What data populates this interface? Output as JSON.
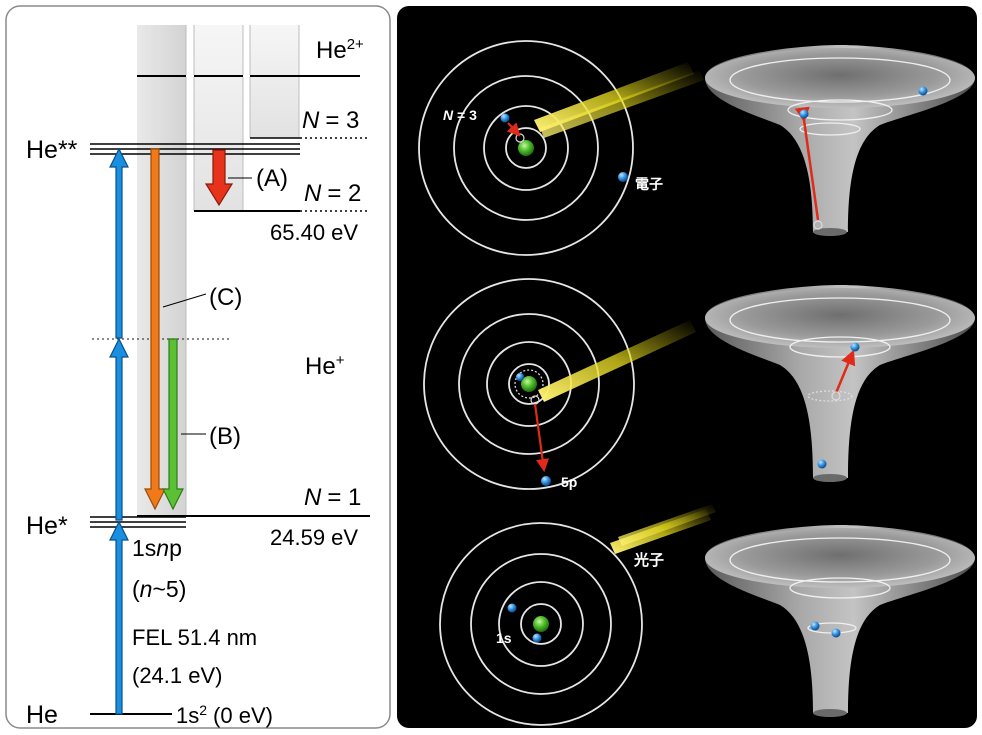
{
  "energy_diagram": {
    "species": {
      "he_double_plus": "He",
      "he_double_plus_sup": "2+",
      "he_double_excited": "He**",
      "he_plus": "He",
      "he_plus_sup": "+",
      "he_excited": "He*",
      "he_ground": "He"
    },
    "levels": {
      "n3": {
        "label_prefix": "N",
        "label_suffix": "= 3"
      },
      "n2": {
        "label_prefix": "N",
        "label_suffix": "= 2",
        "energy": "65.40 eV"
      },
      "n1": {
        "label_prefix": "N",
        "label_suffix": "= 1",
        "energy": "24.59 eV"
      },
      "excited_config": "1snp",
      "excited_config_parts": [
        "1s",
        "n",
        "p"
      ],
      "excited_n": "(n~5)",
      "excited_n_parts": [
        "(",
        "n",
        "~5)"
      ],
      "ground_config": "1s",
      "ground_config_sup": "2",
      "ground_energy": "(0 eV)"
    },
    "fel": {
      "wavelength": "FEL 51.4 nm",
      "photon_energy": "(24.1 eV)"
    },
    "processes": {
      "a": "(A)",
      "b": "(B)",
      "c": "(C)"
    },
    "colors": {
      "absorption": "#1a8fe0",
      "process_a": "#e8331c",
      "process_b": "#5cc035",
      "process_c": "#f07a1a"
    }
  },
  "illustration": {
    "background": "#000000",
    "labels": {
      "n3_prefix": "N",
      "n3_suffix": " = 3",
      "electron": "電子",
      "orbital_5p": "5p",
      "photon": "光子",
      "orbital_1s": "1s"
    },
    "colors": {
      "nucleus": "#4fbf2a",
      "electron": "#2f8fe0",
      "transition_arrow": "#e02a1a",
      "photon_beam": "#e8e020",
      "funnel": "#8a8a8a"
    }
  }
}
